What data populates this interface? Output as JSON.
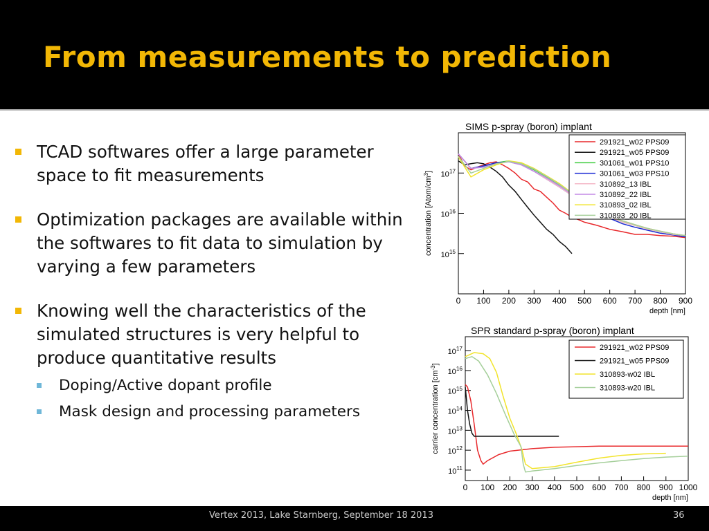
{
  "slide": {
    "title": "From measurements to prediction",
    "bullets": [
      "TCAD softwares offer a large parameter space to fit measurements",
      "Optimization packages are available within the softwares to fit data to simulation by varying a few parameters",
      "Knowing well the characteristics of the simulated structures is very helpful to produce quantitative results"
    ],
    "sub_bullets": [
      "Doping/Active dopant  profile",
      "Mask design and processing parameters"
    ],
    "footer": "Vertex 2013, Lake Starnberg, September 18 2013",
    "page_number": "36"
  },
  "chart_data": [
    {
      "type": "line",
      "title": "SIMS p-spray (boron) implant",
      "xlabel": "depth [nm]",
      "ylabel": "concentration [Atom/cm",
      "ylabel_sup": "3",
      "ylabel_close": "]",
      "xlim": [
        0,
        900
      ],
      "ylim": [
        100000000000000,
        1000000000000000000
      ],
      "yscale": "log",
      "x_ticks": [
        "0",
        "100",
        "200",
        "300",
        "400",
        "500",
        "600",
        "700",
        "800",
        "900"
      ],
      "y_ticks": [
        {
          "value": 1000000000000000,
          "base": "10",
          "exp": "15"
        },
        {
          "value": 10000000000000000,
          "base": "10",
          "exp": "16"
        },
        {
          "value": 100000000000000000,
          "base": "10",
          "exp": "17"
        }
      ],
      "legend_position": "top-right",
      "series": [
        {
          "name": "291921_w02 PPS09",
          "color": "#e8282b",
          "x": [
            0,
            25,
            50,
            75,
            100,
            125,
            150,
            175,
            200,
            225,
            250,
            275,
            300,
            325,
            350,
            375,
            400,
            425,
            450,
            475,
            500,
            550,
            600,
            650,
            700,
            750,
            800,
            850,
            900
          ],
          "y": [
            300000000000000000,
            150000000000000000,
            120000000000000000,
            140000000000000000,
            160000000000000000,
            180000000000000000,
            190000000000000000,
            160000000000000000,
            130000000000000000,
            100000000000000000,
            70000000000000000,
            60000000000000000,
            40000000000000000,
            35000000000000000,
            25000000000000000,
            18000000000000000,
            12000000000000000,
            10000000000000000,
            8000000000000000,
            7000000000000000,
            6000000000000000,
            5000000000000000,
            4000000000000000,
            3500000000000000,
            3000000000000000,
            3000000000000000,
            2800000000000000,
            2700000000000000,
            2500000000000000
          ]
        },
        {
          "name": "291921_w05 PPS09",
          "color": "#111111",
          "x": [
            0,
            25,
            50,
            75,
            100,
            125,
            150,
            175,
            200,
            225,
            250,
            275,
            300,
            325,
            350,
            375,
            400,
            425,
            450
          ],
          "y": [
            200000000000000000,
            160000000000000000,
            170000000000000000,
            180000000000000000,
            170000000000000000,
            140000000000000000,
            110000000000000000,
            80000000000000000,
            50000000000000000,
            35000000000000000,
            22000000000000000,
            14000000000000000,
            9000000000000000,
            6000000000000000,
            4000000000000000,
            3000000000000000,
            2000000000000000,
            1500000000000000,
            1000000000000000
          ]
        },
        {
          "name": "301061_w01 PPS10",
          "color": "#3ccc3c",
          "x": [
            0,
            50,
            100,
            150,
            200,
            250,
            300,
            350,
            400,
            450,
            500,
            550,
            600,
            650,
            700,
            750,
            800,
            850,
            900
          ],
          "y": [
            300000000000000000,
            130000000000000000,
            150000000000000000,
            180000000000000000,
            200000000000000000,
            170000000000000000,
            120000000000000000,
            80000000000000000,
            50000000000000000,
            30000000000000000,
            18000000000000000,
            11000000000000000,
            8000000000000000,
            6000000000000000,
            5000000000000000,
            4000000000000000,
            3500000000000000,
            3000000000000000,
            2800000000000000
          ]
        },
        {
          "name": "301061_w03 PPS10",
          "color": "#1a2ad4",
          "x": [
            0,
            50,
            100,
            150,
            200,
            250,
            300,
            350,
            400,
            450,
            500,
            550,
            600,
            650,
            700,
            750,
            800,
            850,
            900
          ],
          "y": [
            300000000000000000,
            130000000000000000,
            150000000000000000,
            180000000000000000,
            190000000000000000,
            160000000000000000,
            110000000000000000,
            70000000000000000,
            45000000000000000,
            28000000000000000,
            17000000000000000,
            10000000000000000,
            7500000000000000,
            5500000000000000,
            4500000000000000,
            3800000000000000,
            3200000000000000,
            2900000000000000,
            2600000000000000
          ]
        },
        {
          "name": "310892_13 IBL",
          "color": "#f4b8c8",
          "x": [
            0,
            50,
            100,
            150,
            200,
            250,
            300,
            350,
            400,
            450,
            500,
            550,
            600,
            650,
            700,
            750,
            800,
            850,
            900
          ],
          "y": [
            300000000000000000,
            130000000000000000,
            140000000000000000,
            170000000000000000,
            190000000000000000,
            160000000000000000,
            110000000000000000,
            70000000000000000,
            45000000000000000,
            28000000000000000,
            17000000000000000,
            11000000000000000,
            8000000000000000,
            6000000000000000,
            5000000000000000,
            4000000000000000,
            3500000000000000,
            3000000000000000,
            2800000000000000
          ]
        },
        {
          "name": "310892_22 IBL",
          "color": "#c38ae6",
          "x": [
            0,
            50,
            100,
            150,
            200,
            250,
            300,
            350,
            400,
            450,
            500,
            550,
            600,
            650,
            700,
            750,
            800,
            850,
            900
          ],
          "y": [
            300000000000000000,
            130000000000000000,
            140000000000000000,
            170000000000000000,
            190000000000000000,
            160000000000000000,
            110000000000000000,
            75000000000000000,
            48000000000000000,
            30000000000000000,
            18000000000000000,
            12000000000000000,
            8500000000000000,
            6500000000000000,
            5200000000000000,
            4200000000000000,
            3600000000000000,
            3100000000000000,
            2800000000000000
          ]
        },
        {
          "name": "310893_02 IBL",
          "color": "#f2e42a",
          "x": [
            0,
            50,
            100,
            150,
            200,
            250,
            300,
            350,
            400,
            450,
            500,
            550,
            600,
            650,
            700,
            750,
            800,
            850,
            900
          ],
          "y": [
            250000000000000000,
            80000000000000000,
            120000000000000000,
            160000000000000000,
            200000000000000000,
            180000000000000000,
            130000000000000000,
            85000000000000000,
            55000000000000000,
            32000000000000000,
            19000000000000000,
            12000000000000000,
            8500000000000000,
            6500000000000000,
            5200000000000000,
            4200000000000000,
            3600000000000000,
            3100000000000000,
            2800000000000000
          ]
        },
        {
          "name": "310893_20 IBL",
          "color": "#a5cf9a",
          "x": [
            0,
            50,
            100,
            150,
            200,
            250,
            300,
            350,
            400,
            450,
            500,
            550,
            600,
            650,
            700,
            750,
            800,
            850,
            900
          ],
          "y": [
            260000000000000000,
            100000000000000000,
            130000000000000000,
            170000000000000000,
            195000000000000000,
            170000000000000000,
            125000000000000000,
            82000000000000000,
            52000000000000000,
            31000000000000000,
            19000000000000000,
            12000000000000000,
            8500000000000000,
            6500000000000000,
            5200000000000000,
            4200000000000000,
            3600000000000000,
            3100000000000000,
            2800000000000000
          ]
        }
      ]
    },
    {
      "type": "line",
      "title": "SPR standard p-spray (boron) implant",
      "xlabel": "depth [nm]",
      "ylabel": "carrier concentration [cm",
      "ylabel_sup": "-3",
      "ylabel_close": "]",
      "xlim": [
        0,
        1000
      ],
      "ylim": [
        30000000000,
        500000000000000000
      ],
      "yscale": "log",
      "x_ticks": [
        "0",
        "100",
        "200",
        "300",
        "400",
        "500",
        "600",
        "700",
        "800",
        "900",
        "1000"
      ],
      "y_ticks": [
        {
          "value": 100000000000,
          "base": "10",
          "exp": "11"
        },
        {
          "value": 1000000000000,
          "base": "10",
          "exp": "12"
        },
        {
          "value": 10000000000000,
          "base": "10",
          "exp": "13"
        },
        {
          "value": 100000000000000,
          "base": "10",
          "exp": "14"
        },
        {
          "value": 1000000000000000,
          "base": "10",
          "exp": "15"
        },
        {
          "value": 10000000000000000,
          "base": "10",
          "exp": "16"
        },
        {
          "value": 100000000000000000,
          "base": "10",
          "exp": "17"
        }
      ],
      "legend_position": "top-right",
      "series": [
        {
          "name": "291921_w02 PPS09",
          "color": "#e8282b",
          "x": [
            0,
            10,
            25,
            40,
            55,
            70,
            80,
            100,
            150,
            200,
            300,
            400,
            500,
            600,
            700,
            800,
            900,
            1000
          ],
          "y": [
            2000000000000000,
            1500000000000000,
            300000000000000,
            20000000000000,
            1000000000000,
            300000000000,
            200000000000,
            300000000000,
            600000000000,
            900000000000,
            1200000000000,
            1400000000000,
            1500000000000,
            1600000000000,
            1600000000000,
            1600000000000,
            1600000000000,
            1600000000000
          ]
        },
        {
          "name": "291921_w05 PPS09",
          "color": "#111111",
          "x": [
            0,
            10,
            20,
            30,
            40,
            50,
            60,
            80,
            100,
            200,
            300,
            420
          ],
          "y": [
            1500000000000000,
            100000000000000,
            20000000000000,
            7000000000000,
            5000000000000,
            5000000000000,
            5000000000000,
            5000000000000,
            5000000000000,
            5000000000000,
            5000000000000,
            5000000000000
          ]
        },
        {
          "name": "310893-w02 IBL",
          "color": "#f2e42a",
          "x": [
            0,
            40,
            80,
            110,
            140,
            170,
            200,
            230,
            255,
            270,
            300,
            400,
            500,
            600,
            700,
            800,
            900
          ],
          "y": [
            50000000000000000,
            80000000000000000,
            70000000000000000,
            40000000000000000,
            8000000000000000,
            500000000000000,
            40000000000000,
            6000000000000,
            1000000000000,
            200000000000,
            120000000000,
            150000000000,
            250000000000,
            400000000000,
            550000000000,
            650000000000,
            700000000000
          ]
        },
        {
          "name": "310893-w20 IBL",
          "color": "#a5cf9a",
          "x": [
            0,
            30,
            60,
            100,
            140,
            180,
            220,
            250,
            260,
            270,
            300,
            400,
            500,
            600,
            700,
            800,
            900,
            1000
          ],
          "y": [
            40000000000000000,
            50000000000000000,
            30000000000000000,
            6000000000000000,
            700000000000000,
            60000000000000,
            6000000000000,
            1500000000000,
            200000000000,
            80000000000,
            90000000000,
            120000000000,
            170000000000,
            230000000000,
            300000000000,
            380000000000,
            450000000000,
            500000000000
          ]
        }
      ]
    }
  ]
}
